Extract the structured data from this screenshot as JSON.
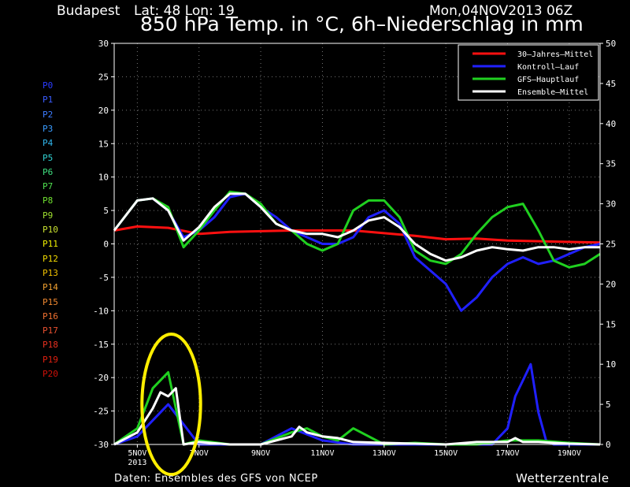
{
  "header": {
    "location": "Budapest",
    "coords": "Lat: 48 Lon: 19",
    "run": "Mon,04NOV2013 06Z",
    "title": "850 hPa Temp. in °C, 6h–Niederschlag in mm"
  },
  "footer": {
    "source": "Daten: Ensembles des GFS von NCEP",
    "brand": "Wetterzentrale"
  },
  "members": [
    {
      "label": "P0",
      "color": "#2a3cff"
    },
    {
      "label": "P1",
      "color": "#3a5cff"
    },
    {
      "label": "P2",
      "color": "#3c7cff"
    },
    {
      "label": "P3",
      "color": "#3a9cff"
    },
    {
      "label": "P4",
      "color": "#30b8f0"
    },
    {
      "label": "P5",
      "color": "#30d0d0"
    },
    {
      "label": "P6",
      "color": "#40e080"
    },
    {
      "label": "P7",
      "color": "#50e050"
    },
    {
      "label": "P8",
      "color": "#70e030"
    },
    {
      "label": "P9",
      "color": "#a0e030"
    },
    {
      "label": "P10",
      "color": "#c8e030"
    },
    {
      "label": "P11",
      "color": "#f0f000"
    },
    {
      "label": "P12",
      "color": "#f0d800"
    },
    {
      "label": "P13",
      "color": "#f0c000"
    },
    {
      "label": "P14",
      "color": "#f0a030"
    },
    {
      "label": "P15",
      "color": "#f08830"
    },
    {
      "label": "P16",
      "color": "#f07030"
    },
    {
      "label": "P17",
      "color": "#e85030"
    },
    {
      "label": "P18",
      "color": "#e83020"
    },
    {
      "label": "P19",
      "color": "#e02010"
    },
    {
      "label": "P20",
      "color": "#d01008"
    }
  ],
  "chart_data": {
    "type": "line",
    "left_axis": {
      "min": -30,
      "max": 30,
      "step": 5,
      "ticks": [
        "30",
        "25",
        "20",
        "15",
        "10",
        "5",
        "0",
        "-5",
        "-10",
        "-15",
        "-20",
        "-25",
        "-30"
      ]
    },
    "right_axis": {
      "min": 0,
      "max": 50,
      "step": 5,
      "ticks": [
        "50",
        "45",
        "40",
        "35",
        "30",
        "25",
        "20",
        "15",
        "10",
        "5",
        "0"
      ]
    },
    "x_range": [
      4.25,
      20.0
    ],
    "x_ticks": [
      {
        "label": "5NOV",
        "sub": "2013",
        "day": 5
      },
      {
        "label": "7NOV",
        "sub": "",
        "day": 7
      },
      {
        "label": "9NOV",
        "sub": "",
        "day": 9
      },
      {
        "label": "11NOV",
        "sub": "",
        "day": 11
      },
      {
        "label": "13NOV",
        "sub": "",
        "day": 13
      },
      {
        "label": "15NOV",
        "sub": "",
        "day": 15
      },
      {
        "label": "17NOV",
        "sub": "",
        "day": 17
      },
      {
        "label": "19NOV",
        "sub": "",
        "day": 19
      }
    ],
    "legend": {
      "placement": "top-right",
      "entries": [
        {
          "name": "30–Jahres–Mittel",
          "color": "#ff1010"
        },
        {
          "name": "Kontroll–Lauf",
          "color": "#2020ff"
        },
        {
          "name": "GFS–Hauptlauf",
          "color": "#20d020"
        },
        {
          "name": "Ensemble–Mittel",
          "color": "#ffffff"
        }
      ]
    },
    "climatology_temp": {
      "x": [
        4.25,
        5,
        6,
        7,
        8,
        9,
        10,
        11,
        12,
        13,
        14,
        15,
        16,
        17,
        18,
        19,
        20
      ],
      "y": [
        2,
        2.6,
        2.4,
        1.5,
        1.8,
        1.9,
        2,
        2,
        2,
        1.6,
        1.2,
        0.7,
        0.8,
        0.5,
        0.4,
        0.3,
        0.2
      ]
    },
    "ensemble_mean_temp": {
      "x": [
        4.25,
        5,
        5.5,
        6,
        6.5,
        7,
        7.5,
        8,
        8.5,
        9,
        9.5,
        10,
        10.5,
        11,
        11.5,
        12,
        12.5,
        13,
        13.5,
        14,
        14.5,
        15,
        15.5,
        16,
        16.5,
        17,
        17.5,
        18,
        18.5,
        19,
        19.5,
        20
      ],
      "y": [
        2,
        6.5,
        6.8,
        5,
        0.5,
        2.5,
        5.5,
        7.5,
        7.5,
        5.5,
        3,
        2,
        1.5,
        1.5,
        1,
        2,
        3.5,
        4,
        2.5,
        0,
        -1.5,
        -2.5,
        -2,
        -1,
        -0.5,
        -0.8,
        -1,
        -0.5,
        -0.5,
        -0.8,
        -0.5,
        -0.5
      ]
    },
    "gfs_main_temp": {
      "x": [
        4.25,
        5,
        5.5,
        6,
        6.5,
        7,
        7.5,
        8,
        8.5,
        9,
        9.5,
        10,
        10.5,
        11,
        11.5,
        12,
        12.5,
        13,
        13.5,
        14,
        14.5,
        15,
        15.5,
        16,
        16.5,
        17,
        17.5,
        18,
        18.5,
        19,
        19.5,
        20
      ],
      "y": [
        2,
        6.5,
        6.8,
        5.5,
        -0.5,
        2,
        5,
        7.8,
        7.5,
        6,
        3,
        2,
        0,
        -1,
        0,
        5,
        6.5,
        6.5,
        4,
        -1,
        -2.5,
        -3,
        -1.5,
        1.5,
        4,
        5.5,
        6,
        2,
        -2.5,
        -3.5,
        -3,
        -1.5
      ]
    },
    "control_temp": {
      "x": [
        4.25,
        5,
        5.5,
        6,
        6.5,
        7,
        7.5,
        8,
        8.5,
        9,
        9.5,
        10,
        10.5,
        11,
        11.5,
        12,
        12.5,
        13,
        13.5,
        14,
        14.5,
        15,
        15.5,
        16,
        16.5,
        17,
        17.5,
        18,
        18.5,
        19,
        19.5,
        20
      ],
      "y": [
        2,
        6.5,
        6.8,
        5,
        1,
        2,
        4,
        7,
        7.5,
        5.5,
        4,
        2,
        1,
        0,
        0,
        1,
        4,
        5,
        3,
        -2,
        -4,
        -6,
        -10,
        -8,
        -5,
        -3,
        -2,
        -3,
        -2.5,
        -1.5,
        -0.5,
        0
      ]
    },
    "ensemble_mean_precip": {
      "x": [
        4.25,
        5,
        5.5,
        5.75,
        6,
        6.25,
        6.5,
        7,
        8,
        9,
        10,
        10.25,
        10.5,
        11,
        11.5,
        12,
        13,
        14,
        15,
        16,
        17,
        17.25,
        17.5,
        18,
        19,
        20
      ],
      "y": [
        0,
        1.5,
        4.5,
        6.5,
        6,
        7,
        0,
        0.3,
        0,
        0,
        1,
        2.2,
        1.5,
        1,
        0.8,
        0.3,
        0.2,
        0.1,
        0,
        0.3,
        0.3,
        0.8,
        0.3,
        0.3,
        0.1,
        0
      ]
    },
    "control_precip": {
      "x": [
        4.25,
        5,
        6,
        7,
        8,
        9,
        10,
        11,
        12,
        13,
        14,
        15,
        16,
        16.5,
        17,
        17.25,
        17.5,
        17.75,
        18,
        18.25,
        18.5,
        19,
        20
      ],
      "y": [
        0,
        1,
        5,
        0,
        0,
        0,
        2,
        0.5,
        0,
        0,
        0,
        0,
        0,
        0,
        2,
        6,
        8,
        10,
        4,
        0.5,
        0,
        0,
        0
      ]
    },
    "gfs_main_precip": {
      "x": [
        4.25,
        5,
        5.5,
        6,
        6.5,
        7,
        8,
        9,
        10,
        10.5,
        11,
        11.5,
        12,
        13,
        14,
        15,
        16,
        17,
        18,
        19,
        20
      ],
      "y": [
        0,
        2,
        7,
        9,
        0,
        0.5,
        0,
        0,
        1.5,
        2,
        1,
        0.5,
        2,
        0,
        0.2,
        0,
        0,
        0.5,
        0.5,
        0.2,
        0
      ]
    },
    "annotation": {
      "shape": "ellipse",
      "color": "#ffee00",
      "center_x": 6.1,
      "center_y_left": -24,
      "rx_days": 0.95,
      "ry_deg": 10.5
    }
  }
}
